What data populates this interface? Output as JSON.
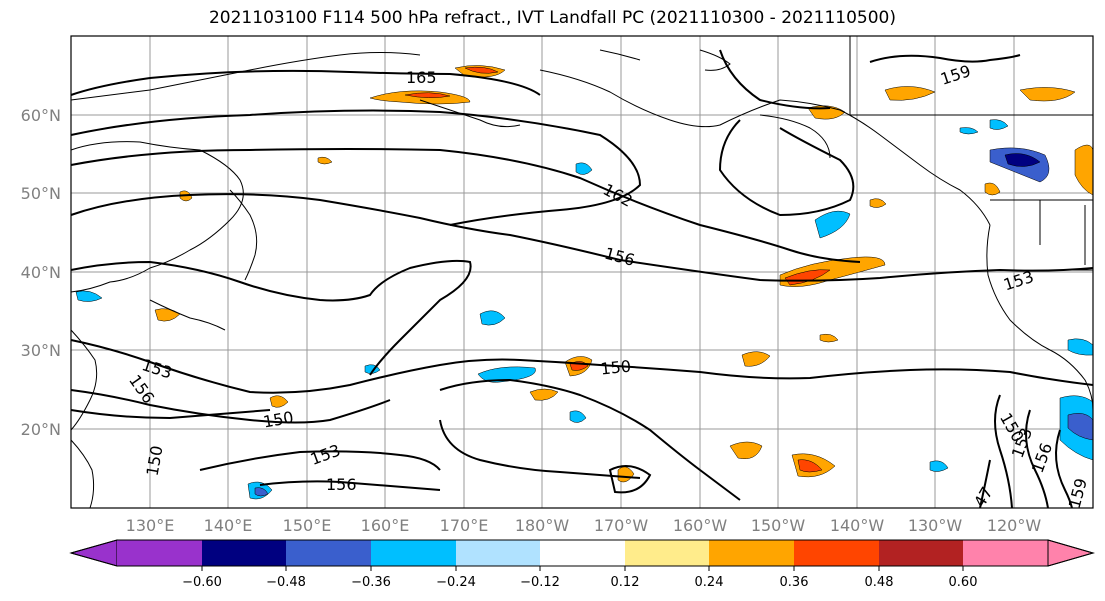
{
  "title": "2021103100 F114 500 hPa refract., IVT Landfall PC (2021110300 - 2021110500)",
  "map": {
    "lat_labels": [
      "60°N",
      "50°N",
      "40°N",
      "30°N",
      "20°N"
    ],
    "lon_labels": [
      "130°E",
      "140°E",
      "150°E",
      "160°E",
      "170°E",
      "180°W",
      "170°W",
      "160°W",
      "150°W",
      "140°W",
      "130°W",
      "120°W"
    ],
    "contour_labels": [
      "165",
      "162",
      "156",
      "159",
      "153",
      "150",
      "153",
      "156",
      "150",
      "150",
      "153",
      "156",
      "150",
      "153",
      "156",
      "159",
      "47"
    ]
  },
  "colorbar": {
    "colors": [
      "#9932CC",
      "#000080",
      "#3A5FCD",
      "#00BFFF",
      "#B0E2FF",
      "#FFFFFF",
      "#FFEC8B",
      "#FFA500",
      "#FF4500",
      "#B22222",
      "#FF82AB"
    ],
    "ticks": [
      "−0.60",
      "−0.48",
      "−0.36",
      "−0.24",
      "−0.12",
      "0.12",
      "0.24",
      "0.36",
      "0.48",
      "0.60"
    ]
  }
}
